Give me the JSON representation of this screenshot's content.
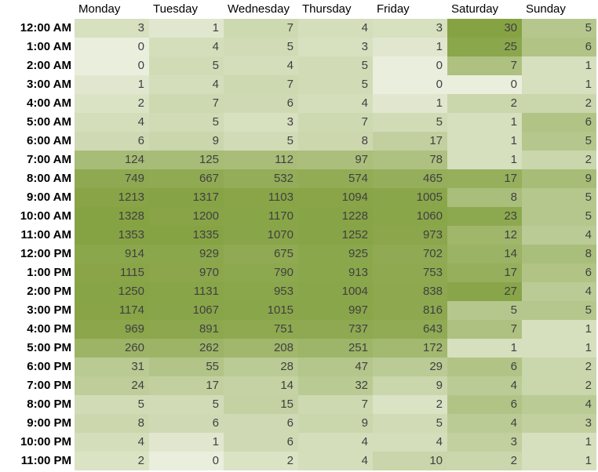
{
  "chart_data": {
    "type": "heatmap",
    "columns": [
      "Monday",
      "Tuesday",
      "Wednesday",
      "Thursday",
      "Friday",
      "Saturday",
      "Sunday"
    ],
    "rows": [
      "12:00 AM",
      "1:00 AM",
      "2:00 AM",
      "3:00 AM",
      "4:00 AM",
      "5:00 AM",
      "6:00 AM",
      "7:00 AM",
      "8:00 AM",
      "9:00 AM",
      "10:00 AM",
      "11:00 AM",
      "12:00 PM",
      "1:00 PM",
      "2:00 PM",
      "3:00 PM",
      "4:00 PM",
      "5:00 PM",
      "6:00 PM",
      "7:00 PM",
      "8:00 PM",
      "9:00 PM",
      "10:00 PM",
      "11:00 PM"
    ],
    "weekday_values": [
      [
        3,
        1,
        7,
        4,
        3
      ],
      [
        0,
        4,
        5,
        3,
        1
      ],
      [
        0,
        5,
        4,
        5,
        0
      ],
      [
        1,
        4,
        7,
        5,
        0
      ],
      [
        2,
        7,
        6,
        4,
        1
      ],
      [
        4,
        5,
        3,
        7,
        5
      ],
      [
        6,
        9,
        5,
        8,
        17
      ],
      [
        124,
        125,
        112,
        97,
        78
      ],
      [
        749,
        667,
        532,
        574,
        465
      ],
      [
        1213,
        1317,
        1103,
        1094,
        1005
      ],
      [
        1328,
        1200,
        1170,
        1228,
        1060
      ],
      [
        1353,
        1335,
        1070,
        1252,
        973
      ],
      [
        914,
        929,
        675,
        925,
        702
      ],
      [
        1115,
        970,
        790,
        913,
        753
      ],
      [
        1250,
        1131,
        953,
        1004,
        838
      ],
      [
        1174,
        1067,
        1015,
        997,
        816
      ],
      [
        969,
        891,
        751,
        737,
        643
      ],
      [
        260,
        262,
        208,
        251,
        172
      ],
      [
        31,
        55,
        28,
        47,
        29
      ],
      [
        24,
        17,
        14,
        32,
        9
      ],
      [
        5,
        5,
        15,
        7,
        2
      ],
      [
        8,
        6,
        6,
        9,
        5
      ],
      [
        4,
        1,
        6,
        4,
        4
      ],
      [
        2,
        0,
        2,
        4,
        10
      ]
    ],
    "weekend_values": [
      [
        30,
        5
      ],
      [
        25,
        6
      ],
      [
        7,
        1
      ],
      [
        0,
        1
      ],
      [
        2,
        2
      ],
      [
        1,
        6
      ],
      [
        1,
        5
      ],
      [
        1,
        2
      ],
      [
        17,
        9
      ],
      [
        8,
        5
      ],
      [
        23,
        5
      ],
      [
        12,
        4
      ],
      [
        14,
        8
      ],
      [
        17,
        6
      ],
      [
        27,
        4
      ],
      [
        5,
        5
      ],
      [
        7,
        1
      ],
      [
        1,
        1
      ],
      [
        6,
        2
      ],
      [
        4,
        2
      ],
      [
        6,
        4
      ],
      [
        4,
        3
      ],
      [
        3,
        1
      ],
      [
        2,
        1
      ]
    ],
    "colors": {
      "low": "#f3f5ea",
      "high": "#86a344",
      "text": "#404040",
      "header_text": "#000000"
    }
  }
}
